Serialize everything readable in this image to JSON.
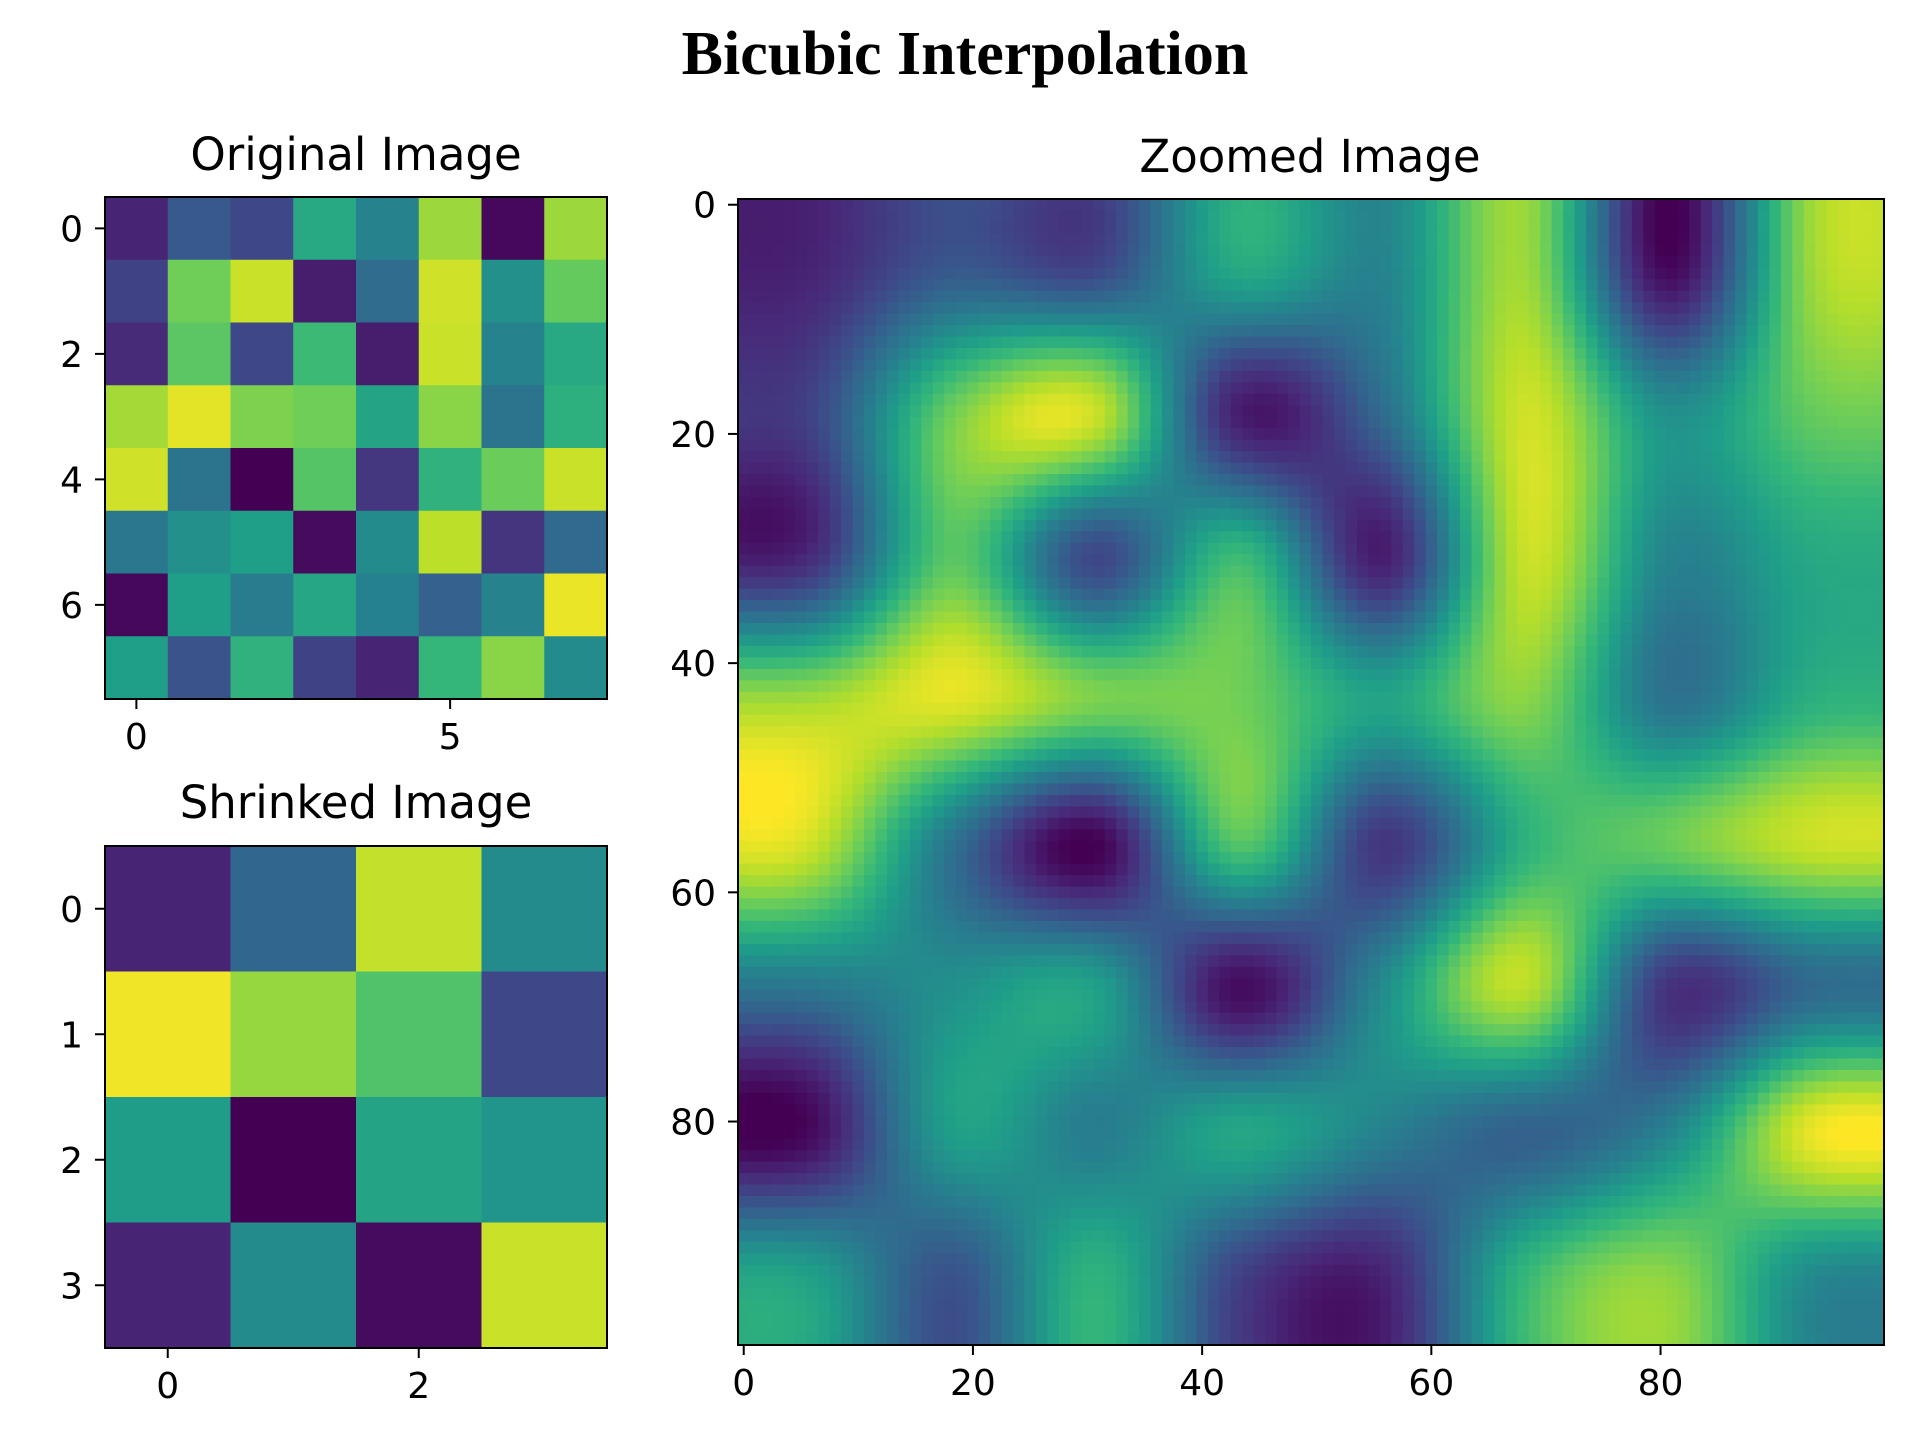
{
  "figure": {
    "title": "Bicubic Interpolation"
  },
  "colormap": {
    "name": "viridis",
    "stops": [
      "#440154",
      "#482878",
      "#3e4989",
      "#31688e",
      "#26828e",
      "#1f9e89",
      "#35b779",
      "#6ece58",
      "#b5de2b",
      "#fde725"
    ]
  },
  "chart_data": [
    {
      "type": "heatmap",
      "title": "Original Image",
      "shape": [
        8,
        8
      ],
      "xticks": [
        0,
        5
      ],
      "yticks": [
        0,
        2,
        4,
        6
      ],
      "xlim": [
        -0.5,
        7.5
      ],
      "ylim": [
        7.5,
        -0.5
      ],
      "values": [
        [
          0.1,
          0.28,
          0.22,
          0.6,
          0.45,
          0.85,
          0.02,
          0.85
        ],
        [
          0.2,
          0.78,
          0.92,
          0.08,
          0.35,
          0.93,
          0.5,
          0.76
        ],
        [
          0.12,
          0.74,
          0.22,
          0.68,
          0.08,
          0.92,
          0.45,
          0.6
        ],
        [
          0.86,
          0.96,
          0.8,
          0.78,
          0.58,
          0.82,
          0.38,
          0.63
        ],
        [
          0.93,
          0.38,
          0.0,
          0.73,
          0.16,
          0.64,
          0.77,
          0.92
        ],
        [
          0.4,
          0.5,
          0.56,
          0.03,
          0.48,
          0.9,
          0.15,
          0.34
        ],
        [
          0.02,
          0.56,
          0.42,
          0.59,
          0.44,
          0.31,
          0.45,
          0.97
        ],
        [
          0.56,
          0.26,
          0.64,
          0.2,
          0.1,
          0.66,
          0.82,
          0.48
        ]
      ]
    },
    {
      "type": "heatmap",
      "title": "Shrinked Image",
      "shape": [
        4,
        4
      ],
      "xticks": [
        0,
        2
      ],
      "yticks": [
        0,
        1,
        2,
        3
      ],
      "xlim": [
        -0.5,
        3.5
      ],
      "ylim": [
        3.5,
        -0.5
      ],
      "values": [
        [
          0.1,
          0.33,
          0.91,
          0.48
        ],
        [
          0.98,
          0.84,
          0.72,
          0.22
        ],
        [
          0.55,
          0.0,
          0.58,
          0.52
        ],
        [
          0.1,
          0.48,
          0.03,
          0.92
        ]
      ]
    },
    {
      "type": "heatmap",
      "title": "Zoomed Image",
      "shape": [
        100,
        100
      ],
      "interpolation": "bicubic",
      "source": "Original Image",
      "xticks": [
        0,
        20,
        40,
        60,
        80
      ],
      "yticks": [
        0,
        20,
        40,
        60,
        80
      ],
      "xlim": [
        -0.5,
        99.5
      ],
      "ylim": [
        99.5,
        -0.5
      ]
    }
  ]
}
